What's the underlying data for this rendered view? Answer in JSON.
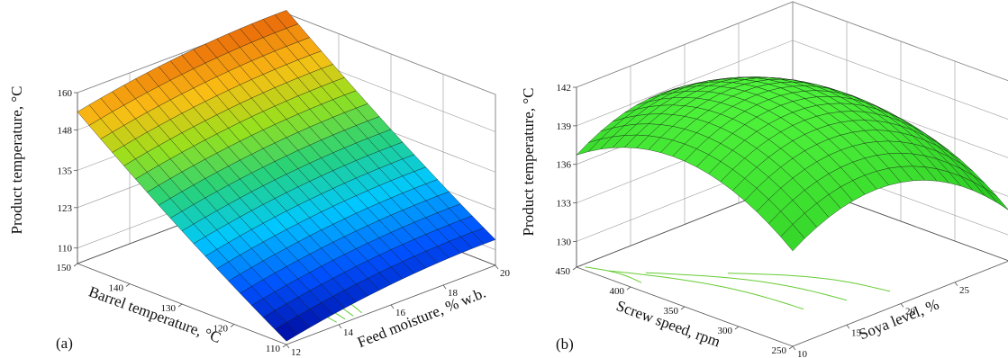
{
  "chart_data": [
    {
      "type": "surface3d",
      "panel_label": "(a)",
      "zlabel": "Product temperature, °C",
      "xlabel": "Feed moisture, % w.b.",
      "ylabel": "Barrel temperature, °C",
      "z_ticks": [
        "110",
        "123",
        "135",
        "148",
        "160"
      ],
      "x_ticks": [
        "12",
        "14",
        "16",
        "18",
        "20"
      ],
      "y_ticks": [
        "110",
        "120",
        "130",
        "140",
        "150"
      ],
      "xlim": [
        12,
        20
      ],
      "ylim": [
        110,
        150
      ],
      "zlim": [
        105,
        160
      ],
      "colormap": "jet",
      "grid": true,
      "corner_values": [
        {
          "feed_moisture": 12,
          "barrel_temperature": 150,
          "product_temperature": 148
        },
        {
          "feed_moisture": 20,
          "barrel_temperature": 150,
          "product_temperature": 155
        },
        {
          "feed_moisture": 12,
          "barrel_temperature": 110,
          "product_temperature": 108
        },
        {
          "feed_moisture": 20,
          "barrel_temperature": 110,
          "product_temperature": 112
        }
      ]
    },
    {
      "type": "surface3d",
      "panel_label": "(b)",
      "zlabel": "Product temperature, °C",
      "xlabel": "Soya level, %",
      "ylabel": "Screw speed, rpm",
      "z_ticks": [
        "130",
        "133",
        "136",
        "139",
        "142"
      ],
      "x_ticks": [
        "10",
        "15",
        "20",
        "25",
        "30"
      ],
      "y_ticks": [
        "250",
        "300",
        "350",
        "400",
        "450"
      ],
      "xlim": [
        10,
        30
      ],
      "ylim": [
        250,
        450
      ],
      "zlim": [
        128,
        142
      ],
      "colormap": "green",
      "grid": true,
      "corner_values": [
        {
          "soya_level": 10,
          "screw_speed": 450,
          "product_temperature": 137
        },
        {
          "soya_level": 30,
          "screw_speed": 450,
          "product_temperature": 138
        },
        {
          "soya_level": 10,
          "screw_speed": 250,
          "product_temperature": 134
        },
        {
          "soya_level": 30,
          "screw_speed": 250,
          "product_temperature": 133
        },
        {
          "soya_level": 20,
          "screw_speed": 350,
          "product_temperature": 141.5
        }
      ]
    }
  ],
  "colors": {
    "box": "#555555",
    "grid": "#999999",
    "contour": "#66cc33",
    "mesh": "#111111"
  }
}
